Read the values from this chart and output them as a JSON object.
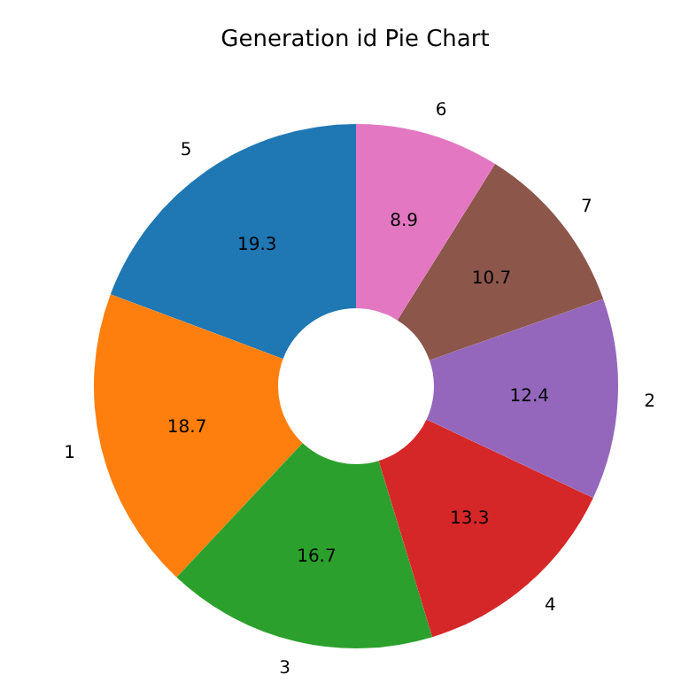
{
  "chart_data": {
    "type": "donut",
    "title": "Generation id Pie Chart",
    "categories": [
      "5",
      "1",
      "3",
      "4",
      "2",
      "7",
      "6"
    ],
    "values": [
      19.3,
      18.7,
      16.7,
      13.3,
      12.4,
      10.7,
      8.9
    ],
    "colors": [
      "#1f77b4",
      "#ff7f0e",
      "#2ca02c",
      "#d62728",
      "#9467bd",
      "#8c564b",
      "#e377c2"
    ],
    "data_labels": true
  }
}
